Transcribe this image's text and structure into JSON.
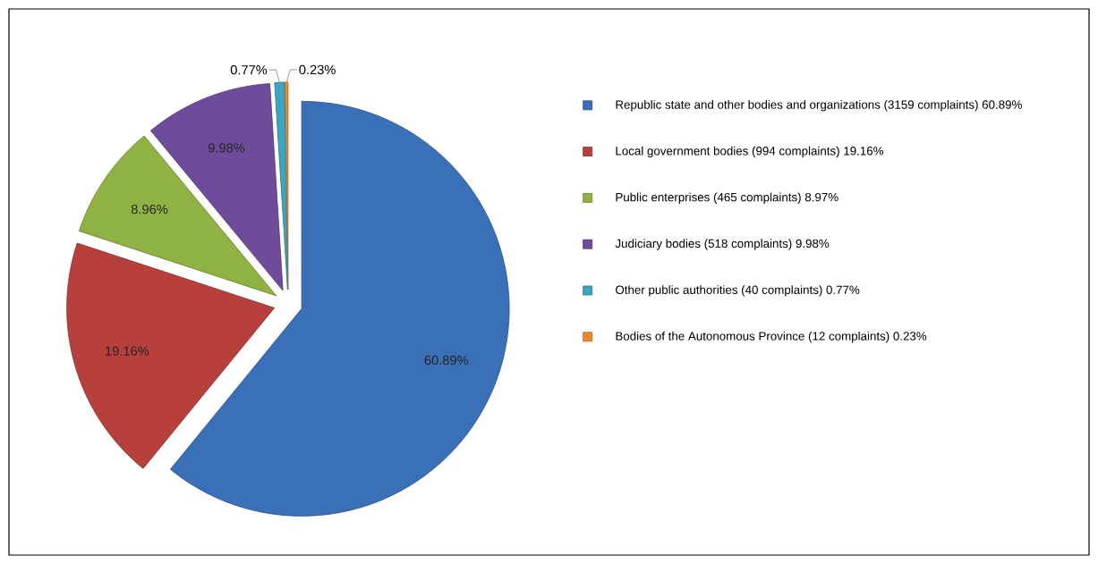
{
  "chart_data": {
    "type": "pie",
    "categories": [
      "Republic state and other bodies and organizations (3159 complaints) 60.89%",
      "Local government bodies (994 complaints) 19.16%",
      "Public enterprises (465 complaints) 8.97%",
      "Judiciary bodies (518 complaints) 9.98%",
      "Other public authorities (40 complaints) 0.77%",
      "Bodies of the Autonomous Province (12 complaints) 0.23%"
    ],
    "values": [
      60.89,
      19.16,
      8.96,
      9.98,
      0.77,
      0.23
    ],
    "colors": [
      "#3a70b8",
      "#b8403c",
      "#8fb243",
      "#6f4c9b",
      "#3aa6c2",
      "#f08a2c"
    ],
    "value_labels": [
      "60.89%",
      "19.16%",
      "8.96%",
      "9.98%",
      "0.77%",
      "0.23%"
    ],
    "legend": "right"
  }
}
